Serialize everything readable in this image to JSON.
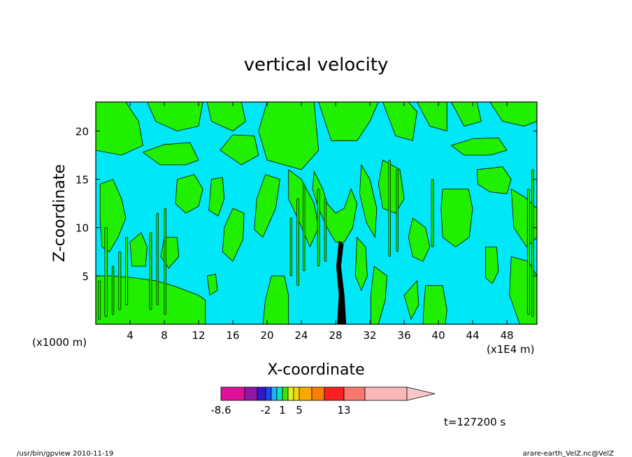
{
  "chart_data": {
    "type": "heatmap",
    "title": "vertical velocity",
    "xlabel": "X-coordinate",
    "ylabel": "Z-coordinate",
    "x_ticks": [
      "4",
      "8",
      "12",
      "16",
      "20",
      "24",
      "28",
      "32",
      "36",
      "40",
      "44",
      "48"
    ],
    "y_ticks": [
      "5",
      "10",
      "15",
      "20"
    ],
    "xlim": [
      0,
      51.5
    ],
    "ylim": [
      0,
      23
    ],
    "x_unit_left": "(x1000 m)",
    "x_unit_right": "(x1E4 m)",
    "grid": false,
    "colorbar": {
      "colors": [
        "#e0109c",
        "#9018a8",
        "#3018c8",
        "#1848f0",
        "#20b0f0",
        "#00e8c0",
        "#40e000",
        "#e0f020",
        "#f8d800",
        "#f8a800",
        "#f88000",
        "#f82020",
        "#f87870",
        "#f8b8b8",
        "#f8c8c8"
      ],
      "tick_labels": [
        "-8.6",
        "-2",
        "1",
        "5",
        "13"
      ],
      "extend": "max"
    },
    "field_colors": {
      "negative": "#00e8f8",
      "positive": "#20f000",
      "updraft_core": "#000000"
    },
    "field_polygons": [
      {
        "sign": "positive",
        "points": [
          [
            0,
            23
          ],
          [
            0,
            18
          ],
          [
            3,
            17.5
          ],
          [
            5.5,
            18.5
          ],
          [
            5,
            21
          ],
          [
            3.5,
            23
          ]
        ]
      },
      {
        "sign": "positive",
        "points": [
          [
            6,
            23
          ],
          [
            7,
            21
          ],
          [
            9.5,
            20
          ],
          [
            12,
            20.5
          ],
          [
            12.5,
            23
          ]
        ]
      },
      {
        "sign": "positive",
        "points": [
          [
            13,
            23
          ],
          [
            13.5,
            21
          ],
          [
            16,
            20
          ],
          [
            17.5,
            21
          ],
          [
            17,
            23
          ]
        ]
      },
      {
        "sign": "positive",
        "points": [
          [
            20,
            23
          ],
          [
            19,
            20
          ],
          [
            20,
            17
          ],
          [
            24,
            16
          ],
          [
            26,
            18
          ],
          [
            25.5,
            23
          ]
        ]
      },
      {
        "sign": "positive",
        "points": [
          [
            26,
            23
          ],
          [
            27.5,
            19
          ],
          [
            30.5,
            19
          ],
          [
            32,
            21
          ],
          [
            33,
            23
          ]
        ]
      },
      {
        "sign": "positive",
        "points": [
          [
            33.5,
            23
          ],
          [
            35,
            19.5
          ],
          [
            37,
            19
          ],
          [
            37.5,
            22
          ],
          [
            36.5,
            23
          ]
        ]
      },
      {
        "sign": "positive",
        "points": [
          [
            37.5,
            23
          ],
          [
            39,
            20.5
          ],
          [
            41,
            20
          ],
          [
            41,
            23
          ]
        ]
      },
      {
        "sign": "positive",
        "points": [
          [
            41.5,
            23
          ],
          [
            43,
            20.5
          ],
          [
            45,
            21
          ],
          [
            44.5,
            23
          ]
        ]
      },
      {
        "sign": "positive",
        "points": [
          [
            46,
            23
          ],
          [
            47.5,
            21
          ],
          [
            50,
            20.5
          ],
          [
            51.5,
            21
          ],
          [
            51.5,
            23
          ]
        ]
      },
      {
        "sign": "positive",
        "points": [
          [
            5.5,
            17.8
          ],
          [
            7.5,
            16.5
          ],
          [
            10.5,
            16.5
          ],
          [
            12,
            17
          ],
          [
            11,
            18.8
          ],
          [
            8,
            18.6
          ]
        ]
      },
      {
        "sign": "positive",
        "points": [
          [
            14.5,
            18
          ],
          [
            17,
            16.5
          ],
          [
            19,
            17.5
          ],
          [
            18.5,
            19.5
          ],
          [
            16,
            19.6
          ]
        ]
      },
      {
        "sign": "positive",
        "points": [
          [
            41.5,
            18.5
          ],
          [
            43,
            17.5
          ],
          [
            46,
            17.5
          ],
          [
            48,
            18
          ],
          [
            47,
            19.3
          ],
          [
            44,
            19.2
          ]
        ]
      },
      {
        "sign": "positive",
        "points": [
          [
            0.5,
            14.5
          ],
          [
            2,
            15
          ],
          [
            3,
            13
          ],
          [
            3.5,
            11
          ],
          [
            2.6,
            9
          ],
          [
            1.6,
            7.5
          ],
          [
            0.7,
            8
          ],
          [
            0.5,
            11
          ]
        ]
      },
      {
        "sign": "positive",
        "points": [
          [
            9.5,
            15
          ],
          [
            11.5,
            15.5
          ],
          [
            12.5,
            14
          ],
          [
            12,
            12.2
          ],
          [
            10.5,
            11.5
          ],
          [
            9.3,
            12.5
          ]
        ]
      },
      {
        "sign": "positive",
        "points": [
          [
            19.8,
            15.5
          ],
          [
            21.5,
            15
          ],
          [
            21,
            12
          ],
          [
            19.5,
            9
          ],
          [
            18.5,
            9.8
          ],
          [
            18.8,
            13
          ]
        ]
      },
      {
        "sign": "positive",
        "points": [
          [
            13.5,
            15
          ],
          [
            14.8,
            15.2
          ],
          [
            15,
            13
          ],
          [
            14.3,
            11.2
          ],
          [
            13.2,
            11.8
          ]
        ]
      },
      {
        "sign": "positive",
        "points": [
          [
            16,
            12
          ],
          [
            17.3,
            11.5
          ],
          [
            17.2,
            8.8
          ],
          [
            16,
            6.5
          ],
          [
            14.8,
            7.5
          ],
          [
            15,
            10
          ]
        ]
      },
      {
        "sign": "positive",
        "points": [
          [
            22.5,
            16
          ],
          [
            24,
            15
          ],
          [
            25.5,
            12.5
          ],
          [
            26,
            10
          ],
          [
            25,
            8
          ],
          [
            23.8,
            10.5
          ],
          [
            22.5,
            13
          ]
        ]
      },
      {
        "sign": "positive",
        "points": [
          [
            25.5,
            15.8
          ],
          [
            26.5,
            14
          ],
          [
            27,
            12.5
          ],
          [
            28,
            11.5
          ],
          [
            29,
            12
          ],
          [
            29.8,
            14
          ],
          [
            30.5,
            12.5
          ],
          [
            30,
            10
          ],
          [
            29,
            8.5
          ],
          [
            28,
            8.5
          ],
          [
            27,
            10
          ],
          [
            26,
            12
          ],
          [
            25.3,
            14
          ]
        ]
      },
      {
        "sign": "positive",
        "points": [
          [
            31,
            16.5
          ],
          [
            32,
            15
          ],
          [
            32.8,
            12
          ],
          [
            32.6,
            9
          ],
          [
            31.6,
            10.5
          ],
          [
            30.8,
            13.5
          ]
        ]
      },
      {
        "sign": "positive",
        "points": [
          [
            33.5,
            17
          ],
          [
            35.5,
            16
          ],
          [
            36,
            13
          ],
          [
            35,
            11.5
          ],
          [
            33.5,
            12
          ],
          [
            33,
            14.5
          ]
        ]
      },
      {
        "sign": "positive",
        "points": [
          [
            37,
            11
          ],
          [
            38.5,
            10
          ],
          [
            39,
            8
          ],
          [
            38.2,
            6.5
          ],
          [
            37,
            7
          ],
          [
            36.5,
            9
          ]
        ]
      },
      {
        "sign": "positive",
        "points": [
          [
            40.5,
            14
          ],
          [
            43.5,
            14
          ],
          [
            44,
            12
          ],
          [
            43.6,
            9
          ],
          [
            42,
            8
          ],
          [
            40.5,
            9
          ],
          [
            40.3,
            12
          ]
        ]
      },
      {
        "sign": "positive",
        "points": [
          [
            44.5,
            16
          ],
          [
            47.5,
            16.3
          ],
          [
            48.5,
            15
          ],
          [
            48,
            13.5
          ],
          [
            46,
            13.7
          ],
          [
            44.6,
            14.5
          ]
        ]
      },
      {
        "sign": "positive",
        "points": [
          [
            45.5,
            8
          ],
          [
            46.8,
            8
          ],
          [
            47,
            5.5
          ],
          [
            46.3,
            4.2
          ],
          [
            45.5,
            4.8
          ]
        ]
      },
      {
        "sign": "positive",
        "points": [
          [
            48.5,
            14
          ],
          [
            50,
            13.2
          ],
          [
            51.5,
            12
          ],
          [
            51.5,
            9
          ],
          [
            50.3,
            8
          ],
          [
            48.8,
            10
          ]
        ]
      },
      {
        "sign": "positive",
        "points": [
          [
            0,
            5
          ],
          [
            2,
            5
          ],
          [
            4.5,
            4.8
          ],
          [
            7,
            4.5
          ],
          [
            9,
            4
          ],
          [
            12,
            3
          ],
          [
            12.8,
            2.5
          ],
          [
            12.8,
            0
          ],
          [
            0,
            0
          ]
        ]
      },
      {
        "sign": "positive",
        "points": [
          [
            4,
            8.5
          ],
          [
            5.3,
            9.5
          ],
          [
            6,
            8
          ],
          [
            5.8,
            6
          ],
          [
            4.2,
            6
          ]
        ]
      },
      {
        "sign": "positive",
        "points": [
          [
            8,
            9
          ],
          [
            9.5,
            9
          ],
          [
            9.7,
            7
          ],
          [
            8.5,
            5.8
          ],
          [
            7.6,
            7
          ]
        ]
      },
      {
        "sign": "positive",
        "points": [
          [
            13,
            5
          ],
          [
            14,
            5.2
          ],
          [
            14.2,
            3.5
          ],
          [
            13.3,
            3
          ]
        ]
      },
      {
        "sign": "positive",
        "points": [
          [
            20.5,
            5
          ],
          [
            22,
            5
          ],
          [
            22.5,
            3
          ],
          [
            22.5,
            0
          ],
          [
            19.5,
            0
          ],
          [
            19.8,
            2.5
          ]
        ]
      },
      {
        "sign": "positive",
        "points": [
          [
            30.5,
            9
          ],
          [
            31.5,
            8
          ],
          [
            31.7,
            5
          ],
          [
            31,
            3.5
          ],
          [
            30.3,
            5
          ]
        ]
      },
      {
        "sign": "positive",
        "points": [
          [
            32.5,
            6
          ],
          [
            34,
            5
          ],
          [
            33.8,
            2.5
          ],
          [
            33,
            0
          ],
          [
            32.1,
            0
          ],
          [
            32.1,
            3
          ]
        ]
      },
      {
        "sign": "positive",
        "points": [
          [
            38.5,
            4
          ],
          [
            40.5,
            4
          ],
          [
            41,
            1.5
          ],
          [
            40.8,
            0
          ],
          [
            38.2,
            0
          ],
          [
            38.3,
            2
          ]
        ]
      },
      {
        "sign": "positive",
        "points": [
          [
            48.5,
            7
          ],
          [
            50.5,
            6.5
          ],
          [
            51.5,
            5
          ],
          [
            51.5,
            0
          ],
          [
            49.5,
            0
          ],
          [
            48.3,
            3
          ]
        ]
      },
      {
        "sign": "positive",
        "points": [
          [
            36,
            3
          ],
          [
            37.5,
            4.5
          ],
          [
            37.7,
            2
          ],
          [
            36.8,
            0.5
          ]
        ]
      },
      {
        "sign": "updraft_core",
        "points": [
          [
            28.4,
            8.6
          ],
          [
            28.9,
            8.3
          ],
          [
            28.6,
            6
          ],
          [
            29,
            3
          ],
          [
            29.2,
            0
          ],
          [
            28.2,
            0
          ],
          [
            28.4,
            3
          ],
          [
            28.1,
            6
          ]
        ]
      }
    ],
    "field_strips": [
      {
        "sign": "positive",
        "x": 0.4,
        "z0": 0.5,
        "z1": 4.5,
        "w": 0.25
      },
      {
        "sign": "positive",
        "x": 1.2,
        "z0": 0.8,
        "z1": 10,
        "w": 0.3
      },
      {
        "sign": "positive",
        "x": 2.0,
        "z0": 1,
        "z1": 6,
        "w": 0.22
      },
      {
        "sign": "positive",
        "x": 2.8,
        "z0": 1.5,
        "z1": 7.5,
        "w": 0.25
      },
      {
        "sign": "positive",
        "x": 3.6,
        "z0": 2,
        "z1": 9,
        "w": 0.25
      },
      {
        "sign": "positive",
        "x": 6.4,
        "z0": 1.5,
        "z1": 9.5,
        "w": 0.25
      },
      {
        "sign": "positive",
        "x": 7.2,
        "z0": 2,
        "z1": 11.5,
        "w": 0.22
      },
      {
        "sign": "positive",
        "x": 8.1,
        "z0": 1,
        "z1": 12,
        "w": 0.22
      },
      {
        "sign": "positive",
        "x": 22.8,
        "z0": 5,
        "z1": 11,
        "w": 0.22
      },
      {
        "sign": "positive",
        "x": 23.6,
        "z0": 4,
        "z1": 13,
        "w": 0.25
      },
      {
        "sign": "positive",
        "x": 24.3,
        "z0": 5.5,
        "z1": 14.5,
        "w": 0.22
      },
      {
        "sign": "positive",
        "x": 26.0,
        "z0": 6,
        "z1": 14,
        "w": 0.25
      },
      {
        "sign": "positive",
        "x": 26.8,
        "z0": 6.5,
        "z1": 13,
        "w": 0.22
      },
      {
        "sign": "positive",
        "x": 34.3,
        "z0": 7,
        "z1": 17,
        "w": 0.22
      },
      {
        "sign": "positive",
        "x": 35.2,
        "z0": 7.5,
        "z1": 16,
        "w": 0.22
      },
      {
        "sign": "positive",
        "x": 39.3,
        "z0": 8,
        "z1": 15,
        "w": 0.25
      },
      {
        "sign": "positive",
        "x": 50.5,
        "z0": 1,
        "z1": 14,
        "w": 0.25
      },
      {
        "sign": "positive",
        "x": 51.0,
        "z0": 0.8,
        "z1": 16,
        "w": 0.22
      }
    ]
  },
  "timestamp": "t=127200 s",
  "footer_left": "/usr/bin/gpview   2010-11-19",
  "footer_right": "arare-earth_VelZ.nc@VelZ"
}
